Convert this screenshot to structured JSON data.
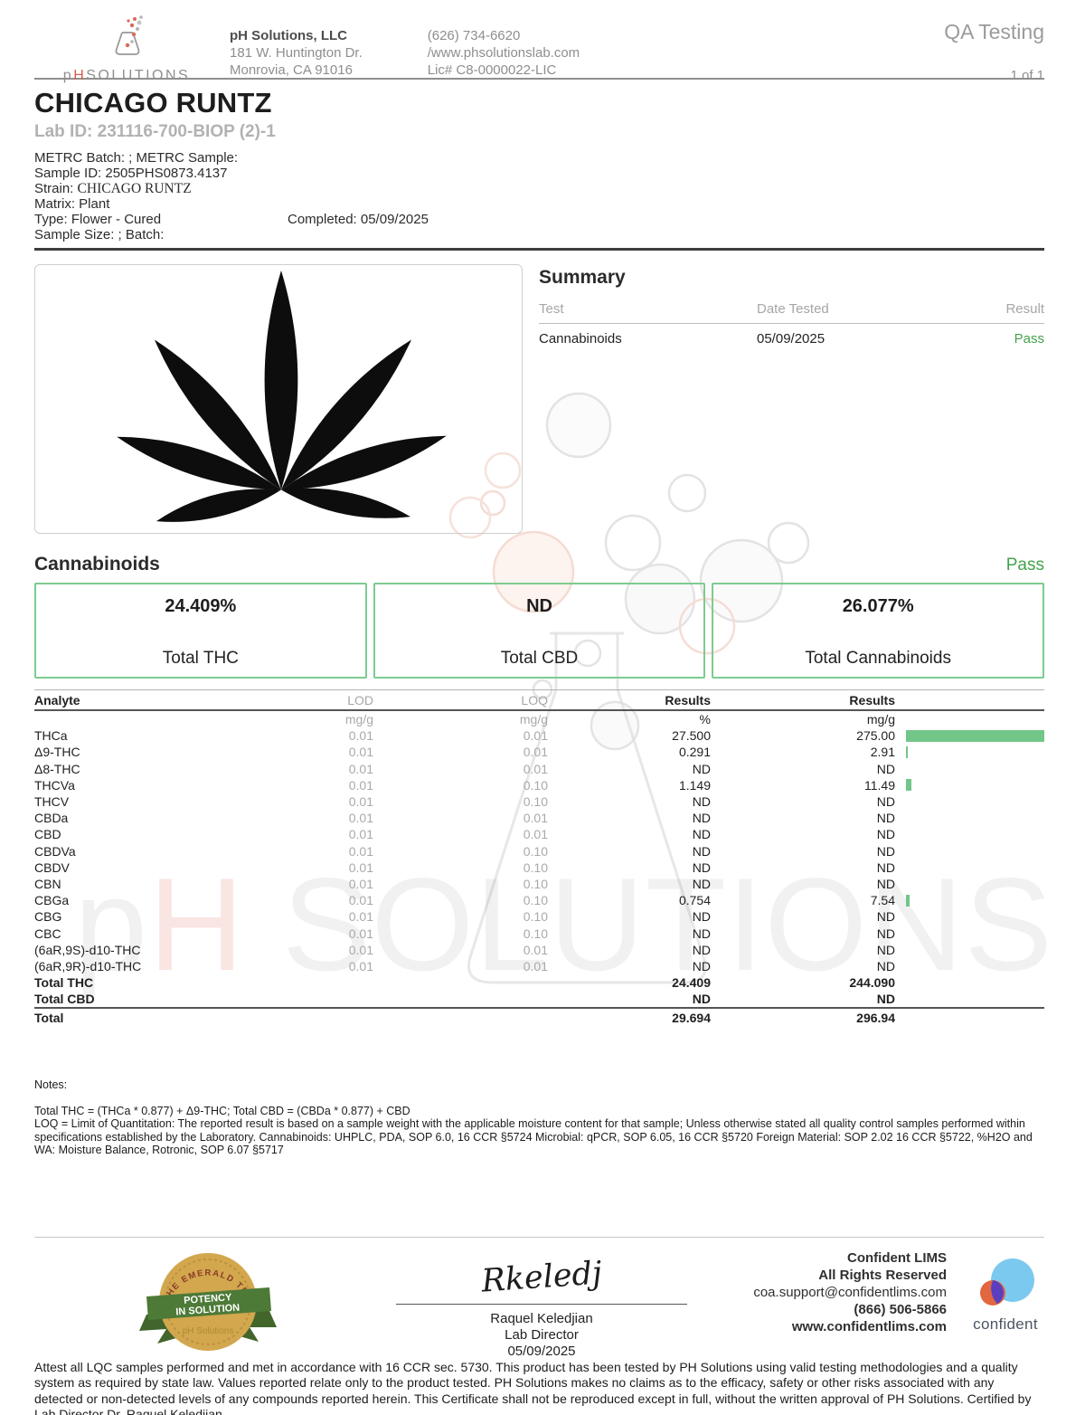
{
  "header": {
    "brand": {
      "p": "p",
      "h": "H",
      "rest": "SOLUTIONS"
    },
    "company_name": "pH Solutions, LLC",
    "address_line1": "181 W. Huntington Dr.",
    "address_line2": "Monrovia, CA 91016",
    "phone": "(626) 734-6620",
    "website": "/www.phsolutionslab.com",
    "license": "Lic# C8-0000022-LIC",
    "doc_type": "QA Testing",
    "page_indicator": "1 of 1"
  },
  "sample": {
    "name": "CHICAGO RUNTZ",
    "lab_id_line": "Lab ID: 231116-700-BIOP (2)-1",
    "metrc_line": "METRC Batch: ; METRC Sample:",
    "sample_id_line": "Sample ID: 2505PHS0873.4137",
    "strain_label": "Strain:",
    "strain_value": "CHICAGO RUNTZ",
    "matrix_line": "Matrix: Plant",
    "type_line": "Type: Flower - Cured",
    "completed_line": "Completed: 05/09/2025",
    "size_batch_line": "Sample Size: ; Batch:"
  },
  "summary": {
    "title": "Summary",
    "col_test": "Test",
    "col_date": "Date Tested",
    "col_result": "Result",
    "row": {
      "test": "Cannabinoids",
      "date": "05/09/2025",
      "result": "Pass"
    }
  },
  "cannabinoids": {
    "title": "Cannabinoids",
    "status": "Pass",
    "boxes": [
      {
        "value": "24.409%",
        "label": "Total THC"
      },
      {
        "value": "ND",
        "label": "Total CBD"
      },
      {
        "value": "26.077%",
        "label": "Total Cannabinoids"
      }
    ],
    "table": {
      "headers": {
        "analyte": "Analyte",
        "lod": "LOD",
        "loq": "LOQ",
        "results_pct": "Results",
        "results_mgg": "Results"
      },
      "units": {
        "lod": "mg/g",
        "loq": "mg/g",
        "pct": "%",
        "mgg": "mg/g"
      },
      "bar_max": 275,
      "rows": [
        {
          "analyte": "THCa",
          "lod": "0.01",
          "loq": "0.01",
          "pct": "27.500",
          "mgg": "275.00",
          "bar": 275
        },
        {
          "analyte": "Δ9-THC",
          "lod": "0.01",
          "loq": "0.01",
          "pct": "0.291",
          "mgg": "2.91",
          "bar": 2.91
        },
        {
          "analyte": "Δ8-THC",
          "lod": "0.01",
          "loq": "0.01",
          "pct": "ND",
          "mgg": "ND",
          "bar": 0
        },
        {
          "analyte": "THCVa",
          "lod": "0.01",
          "loq": "0.10",
          "pct": "1.149",
          "mgg": "11.49",
          "bar": 11.49
        },
        {
          "analyte": "THCV",
          "lod": "0.01",
          "loq": "0.10",
          "pct": "ND",
          "mgg": "ND",
          "bar": 0
        },
        {
          "analyte": "CBDa",
          "lod": "0.01",
          "loq": "0.01",
          "pct": "ND",
          "mgg": "ND",
          "bar": 0
        },
        {
          "analyte": "CBD",
          "lod": "0.01",
          "loq": "0.01",
          "pct": "ND",
          "mgg": "ND",
          "bar": 0
        },
        {
          "analyte": "CBDVa",
          "lod": "0.01",
          "loq": "0.10",
          "pct": "ND",
          "mgg": "ND",
          "bar": 0
        },
        {
          "analyte": "CBDV",
          "lod": "0.01",
          "loq": "0.10",
          "pct": "ND",
          "mgg": "ND",
          "bar": 0
        },
        {
          "analyte": "CBN",
          "lod": "0.01",
          "loq": "0.10",
          "pct": "ND",
          "mgg": "ND",
          "bar": 0
        },
        {
          "analyte": "CBGa",
          "lod": "0.01",
          "loq": "0.10",
          "pct": "0.754",
          "mgg": "7.54",
          "bar": 7.54
        },
        {
          "analyte": "CBG",
          "lod": "0.01",
          "loq": "0.10",
          "pct": "ND",
          "mgg": "ND",
          "bar": 0
        },
        {
          "analyte": "CBC",
          "lod": "0.01",
          "loq": "0.10",
          "pct": "ND",
          "mgg": "ND",
          "bar": 0
        },
        {
          "analyte": "(6aR,9S)-d10-THC",
          "lod": "0.01",
          "loq": "0.01",
          "pct": "ND",
          "mgg": "ND",
          "bar": 0
        },
        {
          "analyte": "(6aR,9R)-d10-THC",
          "lod": "0.01",
          "loq": "0.01",
          "pct": "ND",
          "mgg": "ND",
          "bar": 0
        }
      ],
      "totals": [
        {
          "label": "Total THC",
          "pct": "24.409",
          "mgg": "244.090"
        },
        {
          "label": "Total CBD",
          "pct": "ND",
          "mgg": "ND"
        }
      ],
      "grand_total": {
        "label": "Total",
        "pct": "29.694",
        "mgg": "296.94"
      }
    }
  },
  "notes": {
    "title": "Notes:",
    "formula": "Total THC = (THCa * 0.877) + Δ9-THC; Total CBD = (CBDa * 0.877) + CBD",
    "loq_note": "LOQ = Limit of Quantitation: The reported result is based on a sample weight with the applicable moisture content for that sample; Unless otherwise stated all quality control samples performed within specifications established by the Laboratory. Cannabinoids: UHPLC,  PDA, SOP 6.0, 16 CCR §5724 Microbial: qPCR, SOP 6.05, 16 CCR §5720  Foreign Material: SOP 2.02 16 CCR §5722, %H2O and WA: Moisture  Balance,  Rotronic,  SOP 6.07 §5717"
  },
  "footer": {
    "badge": {
      "arc_text": "THE EMERALD TEST",
      "ribbon_line1": "POTENCY",
      "ribbon_line2": "IN SOLUTION",
      "brand": "pH Solutions"
    },
    "signature": {
      "script": "Rkeledj",
      "name": "Raquel Keledjian",
      "role": "Lab Director",
      "date": "05/09/2025"
    },
    "lims": {
      "line1": "Confident LIMS",
      "line2": "All Rights Reserved",
      "email": "coa.support@confidentlims.com",
      "phone": "(866) 506-5866",
      "website": "www.confidentlims.com",
      "logo_text": "confident"
    },
    "disclaimer": "Attest all LQC samples performed and met in accordance with 16 CCR sec. 5730. This product has been tested by PH Solutions using valid testing methodologies and a quality system as required by state law. Values reported relate only to the product tested. PH Solutions makes no claims as to the efficacy, safety or other risks associated with any detected or non-detected levels of any compounds reported herein. This Certificate shall not be reproduced except in full, without the written approval of PH Solutions. Certified by Lab Director  Dr. Raquel Keledjian"
  },
  "watermark": {
    "p": "p",
    "h": "H",
    "rest": " SOLUTIONS"
  },
  "colors": {
    "pass_green": "#44a24c",
    "box_border_green": "#7ecb90",
    "bar_green": "#72c689"
  }
}
